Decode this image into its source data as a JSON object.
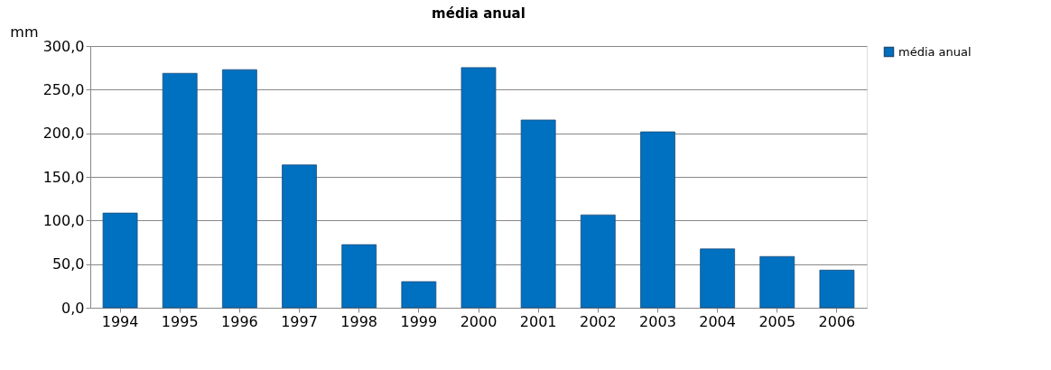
{
  "chart_data": {
    "type": "bar",
    "title": "média anual",
    "ylabel": "mm",
    "categories": [
      "1994",
      "1995",
      "1996",
      "1997",
      "1998",
      "1999",
      "2000",
      "2001",
      "2002",
      "2003",
      "2004",
      "2005",
      "2006"
    ],
    "series": [
      {
        "name": "média anual",
        "color": "#0070c0",
        "values": [
          108.5,
          268.7,
          272.9,
          163.7,
          72.3,
          29.9,
          275.3,
          215.2,
          106.4,
          201.6,
          67.4,
          58.7,
          43.1
        ]
      }
    ],
    "ylim": [
      0,
      300
    ],
    "yticks": [
      {
        "value": 0,
        "label": "0,0"
      },
      {
        "value": 50,
        "label": "50,0"
      },
      {
        "value": 100,
        "label": "100,0"
      },
      {
        "value": 150,
        "label": "150,0"
      },
      {
        "value": 200,
        "label": "200,0"
      },
      {
        "value": 250,
        "label": "250,0"
      },
      {
        "value": 300,
        "label": "300,0"
      }
    ],
    "grid": "y",
    "legend": "right"
  }
}
